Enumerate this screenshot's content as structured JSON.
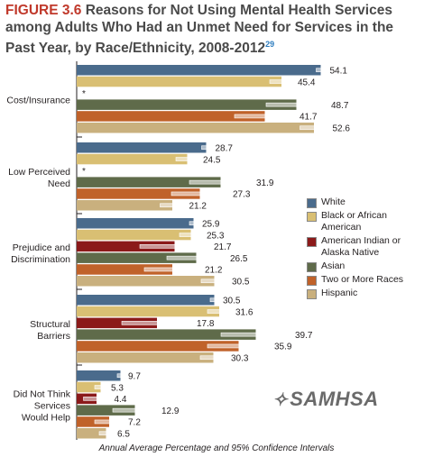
{
  "figure": {
    "label": "FIGURE 3.6",
    "title": "Reasons for Not Using Mental Health Services among Adults Who Had an Unmet Need for Services in the Past Year, by Race/Ethnicity, 2008-2012",
    "footnote_ref": "29"
  },
  "logo_text": "SAMHSA",
  "chart_data": {
    "type": "bar",
    "orientation": "horizontal",
    "xlabel": "Annual Average Percentage and 95% Confidence Intervals",
    "xlim": [
      0,
      60
    ],
    "categories": [
      "Cost/Insurance",
      "Low Perceived Need",
      "Prejudice and Discrimination",
      "Structural Barriers",
      "Did Not Think Services Would Help"
    ],
    "category_lines": [
      [
        "Cost/Insurance"
      ],
      [
        "Low Perceived",
        "Need"
      ],
      [
        "Prejudice and",
        "Discrimination"
      ],
      [
        "Structural",
        "Barriers"
      ],
      [
        "Did Not Think",
        "Services",
        "Would Help"
      ]
    ],
    "series": [
      {
        "name": "White",
        "color": "#4a6b8c",
        "values": [
          54.1,
          28.7,
          25.9,
          30.5,
          9.7
        ],
        "ci": [
          [
            53.1,
            55.1
          ],
          [
            27.7,
            29.7
          ],
          [
            25.0,
            26.8
          ],
          [
            29.6,
            31.4
          ],
          [
            9.0,
            10.4
          ]
        ]
      },
      {
        "name": "Black or African American",
        "color": "#d9bf73",
        "values": [
          45.4,
          24.5,
          25.3,
          31.6,
          5.3
        ],
        "ci": [
          [
            42.8,
            48.0
          ],
          [
            22.0,
            27.0
          ],
          [
            22.8,
            27.8
          ],
          [
            29.0,
            34.2
          ],
          [
            4.0,
            6.6
          ]
        ]
      },
      {
        "name": "American Indian or Alaska Native",
        "color": "#8b1a1a",
        "values": [
          null,
          null,
          21.7,
          17.8,
          4.4
        ],
        "ci": [
          null,
          null,
          [
            14.0,
            29.4
          ],
          [
            10.0,
            25.6
          ],
          [
            1.5,
            7.3
          ]
        ],
        "suppressed_label": "*"
      },
      {
        "name": "Asian",
        "color": "#5f6b4a",
        "values": [
          48.7,
          31.9,
          26.5,
          39.7,
          12.9
        ],
        "ci": [
          [
            42.0,
            55.4
          ],
          [
            25.0,
            38.8
          ],
          [
            20.0,
            33.0
          ],
          [
            32.0,
            47.4
          ],
          [
            8.0,
            17.8
          ]
        ]
      },
      {
        "name": "Two or More Races",
        "color": "#c0622a",
        "values": [
          41.7,
          27.3,
          21.2,
          35.9,
          7.2
        ],
        "ci": [
          [
            35.0,
            48.4
          ],
          [
            21.0,
            33.6
          ],
          [
            15.0,
            27.4
          ],
          [
            29.0,
            42.8
          ],
          [
            4.0,
            10.4
          ]
        ]
      },
      {
        "name": "Hispanic",
        "color": "#c9b07e",
        "values": [
          52.6,
          21.2,
          30.5,
          30.3,
          6.5
        ],
        "ci": [
          [
            49.5,
            55.7
          ],
          [
            18.5,
            23.9
          ],
          [
            27.6,
            33.4
          ],
          [
            27.4,
            33.2
          ],
          [
            5.0,
            8.0
          ]
        ]
      }
    ]
  }
}
